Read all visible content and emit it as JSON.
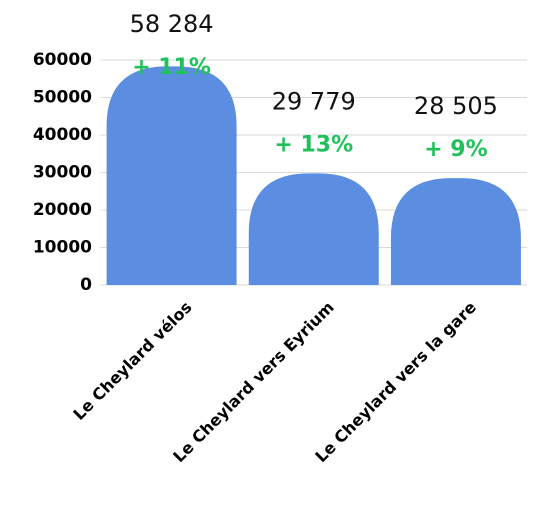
{
  "chart_data": {
    "type": "bar",
    "categories": [
      "Le Cheylard vélos",
      "Le Cheylard vers Eyrium",
      "Le Cheylard vers la gare"
    ],
    "values": [
      58284,
      29779,
      28505
    ],
    "value_labels": [
      "58 284",
      "29 779",
      "28 505"
    ],
    "annotations": [
      "+ 11%",
      "+ 13%",
      "+ 9%"
    ],
    "color": "#5b8de0",
    "annotation_color": "#1fc25a",
    "ylim": [
      0,
      60000
    ],
    "yticks": [
      0,
      10000,
      20000,
      30000,
      40000,
      50000,
      60000
    ],
    "grid": true
  }
}
